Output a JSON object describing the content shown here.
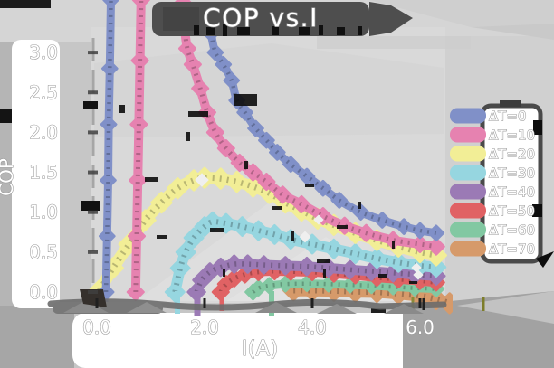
{
  "figure": {
    "title": "COP vs.I",
    "xlabel": "I(A)",
    "ylabel": "COP"
  },
  "chart_data": {
    "type": "line",
    "title": "COP vs.I",
    "xlabel": "I(A)",
    "ylabel": "COP",
    "xlim": [
      0,
      6.6
    ],
    "ylim": [
      0,
      3.3
    ],
    "x_tick_labels": [
      "0.0",
      "2.0",
      "4.0",
      "6.0"
    ],
    "y_tick_labels": [
      "0.0",
      "0.5",
      "1.0",
      "1.5",
      "2.0",
      "2.5",
      "3.0"
    ],
    "grid": false,
    "legend_position": "right-outside",
    "style_note": "hand-painted thick strokes with diamond point markers, white outlined text on gray canvas",
    "series": [
      {
        "name": "ΔT=0",
        "color": "#8090c8",
        "branches": [
          [
            [
              0.17,
              0.0
            ],
            [
              0.19,
              0.7
            ],
            [
              0.21,
              1.4
            ],
            [
              0.22,
              2.1
            ],
            [
              0.24,
              2.8
            ],
            [
              0.26,
              3.66
            ]
          ],
          [
            [
              2.12,
              3.24
            ],
            [
              2.2,
              3.0
            ],
            [
              2.35,
              2.85
            ],
            [
              2.5,
              2.65
            ],
            [
              2.6,
              2.4
            ],
            [
              2.75,
              2.25
            ],
            [
              2.95,
              2.05
            ],
            [
              3.15,
              1.9
            ],
            [
              3.35,
              1.75
            ],
            [
              3.6,
              1.6
            ],
            [
              3.9,
              1.45
            ],
            [
              4.2,
              1.3
            ],
            [
              4.5,
              1.15
            ],
            [
              4.9,
              1.0
            ],
            [
              5.3,
              0.9
            ],
            [
              5.7,
              0.82
            ],
            [
              6.0,
              0.77
            ],
            [
              6.3,
              0.74
            ]
          ]
        ]
      },
      {
        "name": "ΔT=10",
        "color": "#e682b0",
        "branches": [
          [
            [
              0.72,
              0.0
            ],
            [
              0.74,
              0.7
            ],
            [
              0.76,
              1.4
            ],
            [
              0.78,
              2.1
            ],
            [
              0.8,
              2.9
            ],
            [
              0.82,
              3.66
            ]
          ],
          [
            [
              1.6,
              3.62
            ],
            [
              1.63,
              3.3
            ],
            [
              1.68,
              3.05
            ],
            [
              1.78,
              2.85
            ],
            [
              1.92,
              2.55
            ],
            [
              2.05,
              2.25
            ],
            [
              2.2,
              2.0
            ],
            [
              2.4,
              1.8
            ],
            [
              2.65,
              1.62
            ],
            [
              2.9,
              1.5
            ],
            [
              3.15,
              1.38
            ],
            [
              3.45,
              1.22
            ],
            [
              3.8,
              1.1
            ],
            [
              4.2,
              0.95
            ],
            [
              4.6,
              0.83
            ],
            [
              5.0,
              0.74
            ],
            [
              5.5,
              0.65
            ],
            [
              6.0,
              0.6
            ],
            [
              6.3,
              0.57
            ]
          ]
        ]
      },
      {
        "name": "ΔT=20",
        "color": "#f2ee96",
        "branches": [
          [
            [
              0.05,
              0.02
            ],
            [
              0.3,
              0.3
            ],
            [
              0.6,
              0.6
            ],
            [
              0.9,
              0.9
            ],
            [
              1.2,
              1.12
            ],
            [
              1.5,
              1.3
            ],
            [
              1.8,
              1.4
            ],
            [
              2.0,
              1.43
            ],
            [
              2.3,
              1.42
            ],
            [
              2.6,
              1.38
            ],
            [
              2.9,
              1.32
            ],
            [
              3.2,
              1.24
            ],
            [
              3.5,
              1.12
            ],
            [
              3.8,
              1.02
            ],
            [
              4.1,
              0.92
            ],
            [
              4.4,
              0.84
            ],
            [
              4.8,
              0.74
            ],
            [
              5.2,
              0.65
            ],
            [
              5.6,
              0.57
            ],
            [
              6.0,
              0.5
            ],
            [
              6.3,
              0.46
            ]
          ]
        ]
      },
      {
        "name": "ΔT=30",
        "color": "#96d6e0",
        "branches": [
          [
            [
              1.45,
              0.0
            ],
            [
              1.55,
              0.3
            ],
            [
              1.65,
              0.5
            ],
            [
              1.8,
              0.68
            ],
            [
              2.0,
              0.82
            ],
            [
              2.15,
              0.88
            ],
            [
              2.4,
              0.86
            ],
            [
              2.7,
              0.82
            ],
            [
              3.0,
              0.77
            ],
            [
              3.3,
              0.72
            ],
            [
              3.6,
              0.66
            ],
            [
              4.0,
              0.6
            ],
            [
              4.4,
              0.54
            ],
            [
              4.8,
              0.48
            ],
            [
              5.2,
              0.42
            ],
            [
              5.6,
              0.37
            ],
            [
              6.0,
              0.33
            ],
            [
              6.3,
              0.31
            ]
          ]
        ]
      },
      {
        "name": "ΔT=40",
        "color": "#9b7ab5",
        "branches": [
          [
            [
              1.85,
              0.0
            ],
            [
              1.95,
              0.15
            ],
            [
              2.1,
              0.25
            ],
            [
              2.3,
              0.31
            ],
            [
              2.55,
              0.35
            ],
            [
              2.8,
              0.35
            ],
            [
              3.1,
              0.34
            ],
            [
              3.5,
              0.33
            ],
            [
              3.9,
              0.32
            ],
            [
              4.3,
              0.3
            ],
            [
              4.7,
              0.28
            ],
            [
              5.1,
              0.26
            ],
            [
              5.5,
              0.24
            ],
            [
              5.9,
              0.22
            ],
            [
              6.3,
              0.2
            ]
          ]
        ]
      },
      {
        "name": "ΔT=50",
        "color": "#e06264",
        "branches": [
          [
            [
              2.3,
              0.0
            ],
            [
              2.4,
              0.1
            ],
            [
              2.55,
              0.17
            ],
            [
              2.75,
              0.22
            ],
            [
              3.0,
              0.25
            ],
            [
              3.3,
              0.26
            ],
            [
              3.6,
              0.255
            ],
            [
              4.0,
              0.25
            ],
            [
              4.4,
              0.23
            ],
            [
              4.8,
              0.21
            ],
            [
              5.2,
              0.18
            ],
            [
              5.6,
              0.16
            ],
            [
              6.0,
              0.14
            ],
            [
              6.3,
              0.12
            ]
          ]
        ]
      },
      {
        "name": "ΔT=60",
        "color": "#82c8a2",
        "branches": [
          [
            [
              2.9,
              0.0
            ],
            [
              3.0,
              0.05
            ],
            [
              3.2,
              0.08
            ],
            [
              3.5,
              0.1
            ],
            [
              3.9,
              0.105
            ],
            [
              4.3,
              0.1
            ],
            [
              4.7,
              0.09
            ],
            [
              5.1,
              0.08
            ],
            [
              5.5,
              0.065
            ],
            [
              5.9,
              0.05
            ],
            [
              6.3,
              0.04
            ]
          ]
        ]
      },
      {
        "name": "ΔT=70",
        "color": "#d69a6a",
        "branches": [
          [
            [
              3.65,
              0.02
            ],
            [
              4.0,
              0.02
            ],
            [
              4.4,
              0.015
            ],
            [
              4.8,
              0.005
            ],
            [
              5.2,
              0.0
            ],
            [
              5.6,
              -0.02
            ],
            [
              6.0,
              -0.05
            ],
            [
              6.3,
              -0.09
            ],
            [
              6.55,
              -0.14
            ]
          ]
        ]
      }
    ]
  }
}
